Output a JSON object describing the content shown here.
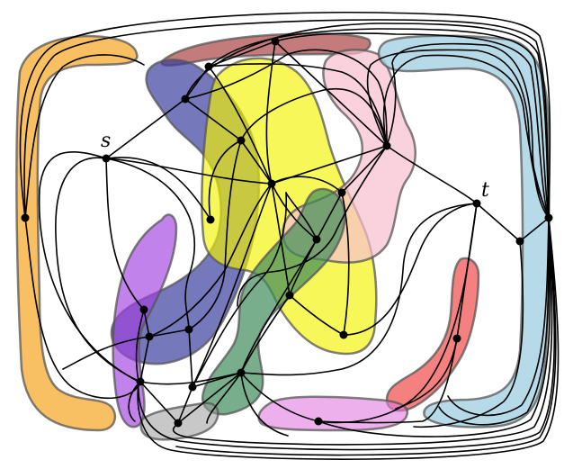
{
  "labels": {
    "source": "s",
    "target": "t"
  },
  "colors": {
    "orange": "#f7b548",
    "dark_red": "#a33434",
    "slate_blue": "#3b3f9c",
    "yellow": "#f5f200",
    "pink": "#f8bfd0",
    "light_blue": "#a9d3e3",
    "purple": "#a23fe0",
    "green": "#3f8c5a",
    "red": "#ef2b2b",
    "magenta": "#e27be0",
    "gray": "#9b9b9b",
    "edge": "#000000"
  }
}
